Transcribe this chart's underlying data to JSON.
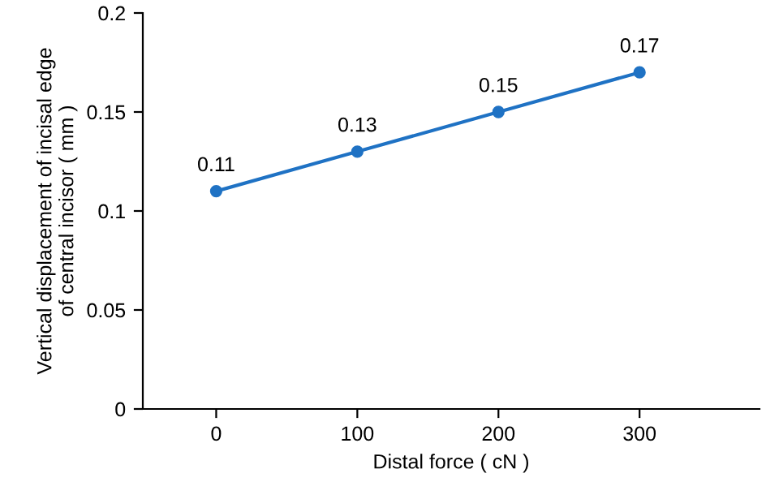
{
  "chart_data": {
    "type": "line",
    "xlabel": "Distal force ( cN )",
    "ylabel": "Vertical displacement of incisal edge\nof central incisor ( mm )",
    "x": [
      0,
      100,
      200,
      300
    ],
    "series": [
      {
        "color": "#1f72c4",
        "values": [
          0.11,
          0.13,
          0.15,
          0.17
        ]
      }
    ],
    "data_labels": true,
    "marker": "circle",
    "line_style": "solid",
    "grid": false,
    "legend": false,
    "xlim": [
      -52,
      385
    ],
    "xticks": [
      0,
      100,
      200,
      300
    ],
    "ylim": [
      0,
      0.2
    ],
    "yticks": [
      {
        "value": 0,
        "label": "0"
      },
      {
        "value": 0.05,
        "label": "0.05"
      },
      {
        "value": 0.1,
        "label": "0.1"
      },
      {
        "value": 0.15,
        "label": "0.15"
      },
      {
        "value": 0.2,
        "label": "0.2"
      }
    ]
  }
}
